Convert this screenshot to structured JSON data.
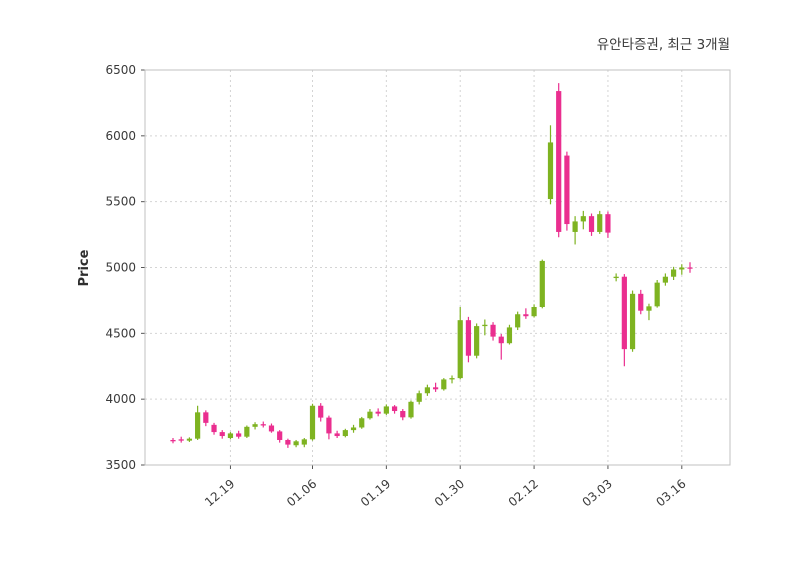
{
  "header": {
    "title": "유안타증권, 최근 3개월"
  },
  "chart_data": {
    "type": "candlestick",
    "title": "유안타증권, 최근 3개월",
    "xlabel": "",
    "ylabel": "Price",
    "ylim": [
      3500,
      6500
    ],
    "yticks": [
      3500,
      4000,
      4500,
      5000,
      5500,
      6000,
      6500
    ],
    "xticks": [
      {
        "i": 7,
        "label": "12.19"
      },
      {
        "i": 17,
        "label": "01.06"
      },
      {
        "i": 26,
        "label": "01.19"
      },
      {
        "i": 35,
        "label": "01.30"
      },
      {
        "i": 44,
        "label": "02.12"
      },
      {
        "i": 53,
        "label": "03.03"
      },
      {
        "i": 62,
        "label": "03.16"
      }
    ],
    "grid": true,
    "legend_position": "none",
    "colors": {
      "up": "#7eb321",
      "down": "#ea2e8f",
      "grid": "#d4d4d4",
      "border": "#c0c0c0",
      "text": "#3a3a3a",
      "background": "#ffffff"
    },
    "candles_format": [
      "open",
      "high",
      "low",
      "close"
    ],
    "candles": [
      [
        3690,
        3705,
        3665,
        3680
      ],
      [
        3695,
        3715,
        3670,
        3685
      ],
      [
        3685,
        3710,
        3675,
        3700
      ],
      [
        3700,
        3950,
        3690,
        3900
      ],
      [
        3900,
        3915,
        3795,
        3820
      ],
      [
        3805,
        3820,
        3730,
        3750
      ],
      [
        3750,
        3765,
        3700,
        3720
      ],
      [
        3705,
        3750,
        3695,
        3740
      ],
      [
        3740,
        3760,
        3700,
        3715
      ],
      [
        3715,
        3800,
        3705,
        3790
      ],
      [
        3790,
        3825,
        3770,
        3810
      ],
      [
        3810,
        3830,
        3785,
        3800
      ],
      [
        3800,
        3815,
        3745,
        3755
      ],
      [
        3755,
        3765,
        3670,
        3690
      ],
      [
        3690,
        3700,
        3630,
        3655
      ],
      [
        3650,
        3690,
        3635,
        3680
      ],
      [
        3655,
        3705,
        3635,
        3695
      ],
      [
        3695,
        3965,
        3685,
        3950
      ],
      [
        3950,
        3970,
        3830,
        3860
      ],
      [
        3860,
        3875,
        3695,
        3740
      ],
      [
        3740,
        3760,
        3705,
        3720
      ],
      [
        3720,
        3775,
        3710,
        3765
      ],
      [
        3765,
        3805,
        3745,
        3785
      ],
      [
        3785,
        3865,
        3775,
        3855
      ],
      [
        3855,
        3925,
        3845,
        3905
      ],
      [
        3905,
        3930,
        3870,
        3890
      ],
      [
        3890,
        3960,
        3880,
        3945
      ],
      [
        3945,
        3955,
        3890,
        3910
      ],
      [
        3910,
        3925,
        3840,
        3862
      ],
      [
        3862,
        3990,
        3852,
        3980
      ],
      [
        3980,
        4065,
        3960,
        4045
      ],
      [
        4045,
        4110,
        4025,
        4090
      ],
      [
        4090,
        4125,
        4055,
        4075
      ],
      [
        4075,
        4160,
        4065,
        4150
      ],
      [
        4150,
        4180,
        4120,
        4160
      ],
      [
        4160,
        4700,
        4150,
        4600
      ],
      [
        4600,
        4625,
        4280,
        4330
      ],
      [
        4330,
        4575,
        4310,
        4555
      ],
      [
        4555,
        4605,
        4485,
        4565
      ],
      [
        4565,
        4585,
        4445,
        4475
      ],
      [
        4475,
        4495,
        4300,
        4425
      ],
      [
        4425,
        4565,
        4415,
        4545
      ],
      [
        4545,
        4665,
        4525,
        4645
      ],
      [
        4645,
        4690,
        4610,
        4630
      ],
      [
        4630,
        4720,
        4620,
        4700
      ],
      [
        4700,
        5060,
        4690,
        5050
      ],
      [
        5520,
        6080,
        5480,
        5950
      ],
      [
        6340,
        6400,
        5230,
        5270
      ],
      [
        5850,
        5880,
        5280,
        5330
      ],
      [
        5270,
        5390,
        5175,
        5350
      ],
      [
        5350,
        5430,
        5290,
        5390
      ],
      [
        5390,
        5410,
        5240,
        5270
      ],
      [
        5270,
        5430,
        5255,
        5405
      ],
      [
        5405,
        5425,
        5225,
        5265
      ],
      [
        4920,
        4955,
        4895,
        4930
      ],
      [
        4930,
        4950,
        4250,
        4380
      ],
      [
        4380,
        4825,
        4360,
        4800
      ],
      [
        4800,
        4830,
        4645,
        4672
      ],
      [
        4672,
        4725,
        4600,
        4705
      ],
      [
        4705,
        4905,
        4695,
        4885
      ],
      [
        4885,
        4955,
        4862,
        4930
      ],
      [
        4930,
        5005,
        4905,
        4985
      ],
      [
        4985,
        5025,
        4945,
        5000
      ],
      [
        5000,
        5040,
        4960,
        4995
      ]
    ]
  }
}
